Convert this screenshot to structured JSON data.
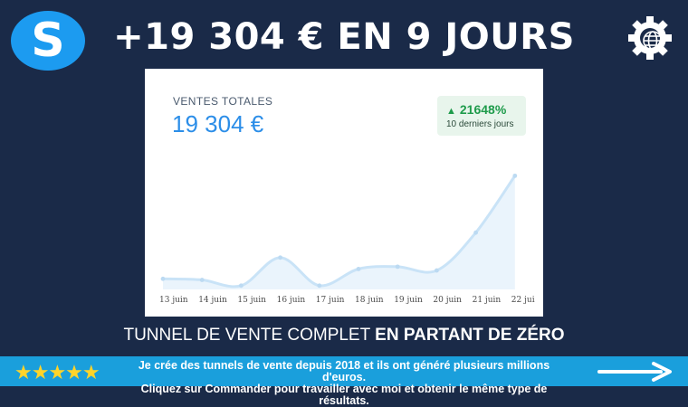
{
  "header": {
    "title": "+19 304 € EN 9 JOURS",
    "logo_icon": "sendinblue-s-logo-icon",
    "right_icon": "gear-globe-icon"
  },
  "card": {
    "sales_label": "VENTES TOTALES",
    "sales_value": "19 304 €",
    "growth_pct": "21648%",
    "growth_period": "10 derniers jours",
    "growth_color": "#1e9b4b"
  },
  "chart_data": {
    "type": "area",
    "categories": [
      "13 juin",
      "14 juin",
      "15 juin",
      "16 juin",
      "17 juin",
      "18 juin",
      "19 juin",
      "20 juin",
      "21 juin",
      "22 jui"
    ],
    "values": [
      140,
      125,
      50,
      420,
      50,
      270,
      300,
      250,
      750,
      1500
    ],
    "ylim": [
      0,
      1600
    ],
    "grid": false,
    "line_color": "#c9e3f7",
    "fill_color": "#eaf4fc"
  },
  "banner": {
    "title_normal": "TUNNEL DE VENTE COMPLET ",
    "title_bold": "EN PARTANT DE ZÉRO"
  },
  "bottom": {
    "stars": "★★★★★",
    "line1": "Je crée des tunnels de vente depuis 2018 et ils ont généré plusieurs millions d'euros.",
    "line2_a": "Cliquez sur ",
    "line2_b": "Commander",
    "line2_c": " pour travailler avec moi et obtenir le même type de résultats."
  }
}
